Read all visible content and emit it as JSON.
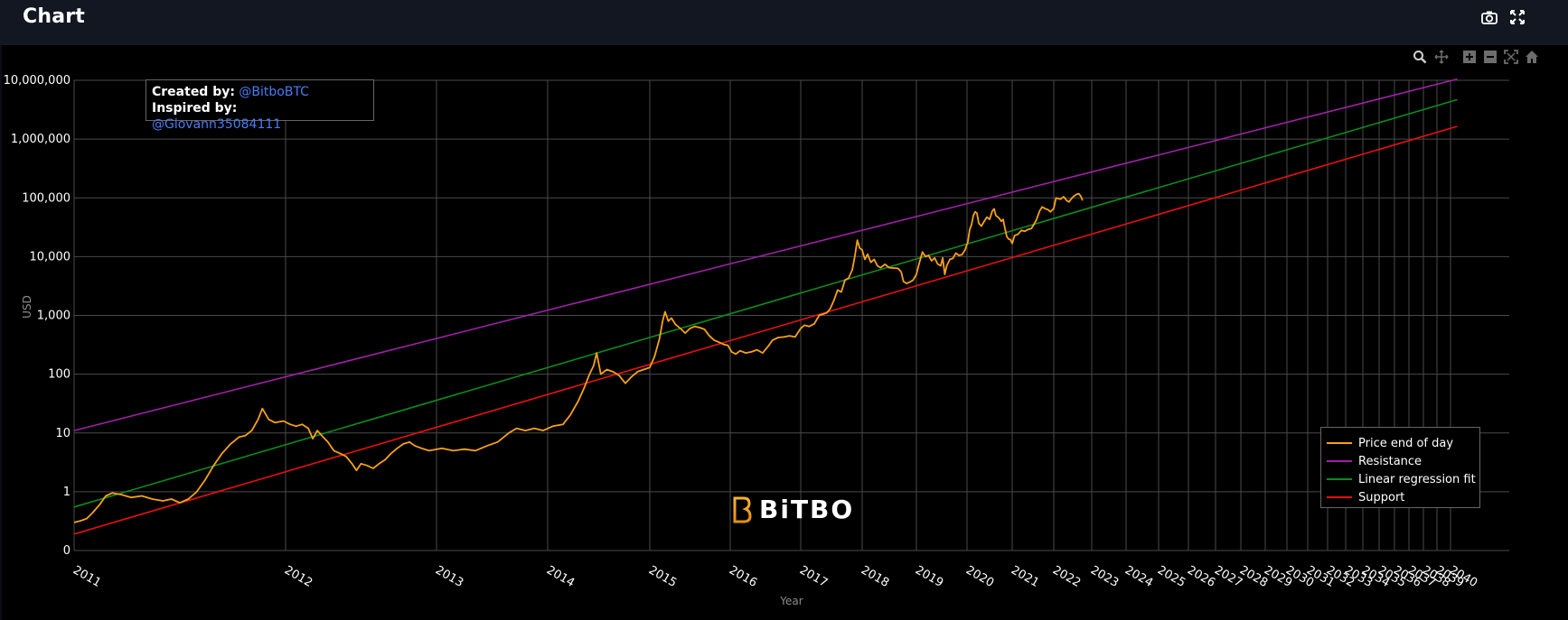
{
  "header": {
    "title": "Chart"
  },
  "toolbar": {
    "camera_icon": "camera-icon",
    "fullscreen_icon": "fullscreen-icon"
  },
  "modebar": [
    "zoom-icon",
    "pan-icon",
    "zoom-in-icon",
    "zoom-out-icon",
    "autoscale-icon",
    "reset-axes-icon"
  ],
  "credits": {
    "created_label": "Created by:",
    "created_value": "@BitboBTC",
    "inspired_label": "Inspired by:",
    "inspired_value": "@Giovann35084111"
  },
  "watermark": {
    "text": "BiTBO"
  },
  "colors": {
    "price": "#f7a11a",
    "resistance": "#a020a8",
    "regression": "#0a8c1e",
    "support": "#e81010",
    "grid": "#4a4a4a",
    "accent_link": "#4d7bf3"
  },
  "chart_data": {
    "type": "line",
    "xlabel": "Year",
    "ylabel": "USD",
    "yscale": "log",
    "ylim": [
      0.1,
      10000000
    ],
    "y_ticks": [
      {
        "value": 10000000,
        "label": "10,000,000"
      },
      {
        "value": 1000000,
        "label": "1,000,000"
      },
      {
        "value": 100000,
        "label": "100,000"
      },
      {
        "value": 10000,
        "label": "10,000"
      },
      {
        "value": 1000,
        "label": "1,000"
      },
      {
        "value": 100,
        "label": "100"
      },
      {
        "value": 10,
        "label": "10"
      },
      {
        "value": 1,
        "label": "1"
      },
      {
        "value": 0.1,
        "label": "0"
      }
    ],
    "x_ticks": [
      "2011",
      "2012",
      "2013",
      "2014",
      "2015",
      "2016",
      "2017",
      "2018",
      "2019",
      "2020",
      "2021",
      "2022",
      "2023",
      "2024",
      "2025",
      "2026",
      "2027",
      "2028",
      "2029",
      "2030",
      "2031",
      "2032",
      "2033",
      "2034",
      "2035",
      "2036",
      "2037",
      "2038",
      "2039",
      "2040"
    ],
    "xlim": [
      2011.0,
      2040.5
    ],
    "legend": {
      "position": "bottom-right"
    },
    "grid": true,
    "series": [
      {
        "name": "Price end of day",
        "color": "#f7a11a",
        "points": [
          [
            2011.0,
            0.3
          ],
          [
            2011.03,
            0.32
          ],
          [
            2011.06,
            0.35
          ],
          [
            2011.09,
            0.45
          ],
          [
            2011.12,
            0.6
          ],
          [
            2011.15,
            0.85
          ],
          [
            2011.18,
            0.95
          ],
          [
            2011.22,
            0.9
          ],
          [
            2011.27,
            0.8
          ],
          [
            2011.32,
            0.85
          ],
          [
            2011.37,
            0.75
          ],
          [
            2011.42,
            0.7
          ],
          [
            2011.46,
            0.75
          ],
          [
            2011.5,
            0.65
          ],
          [
            2011.54,
            0.75
          ],
          [
            2011.58,
            1.0
          ],
          [
            2011.62,
            1.6
          ],
          [
            2011.66,
            2.8
          ],
          [
            2011.7,
            4.5
          ],
          [
            2011.74,
            6.5
          ],
          [
            2011.78,
            8.5
          ],
          [
            2011.81,
            9.0
          ],
          [
            2011.84,
            11
          ],
          [
            2011.87,
            17
          ],
          [
            2011.89,
            26
          ],
          [
            2011.92,
            17
          ],
          [
            2011.95,
            15
          ],
          [
            2011.99,
            16
          ],
          [
            2012.03,
            14
          ],
          [
            2012.07,
            13
          ],
          [
            2012.11,
            14
          ],
          [
            2012.15,
            12
          ],
          [
            2012.18,
            8
          ],
          [
            2012.21,
            11
          ],
          [
            2012.24,
            9
          ],
          [
            2012.28,
            7
          ],
          [
            2012.32,
            5
          ],
          [
            2012.36,
            4.5
          ],
          [
            2012.4,
            4
          ],
          [
            2012.44,
            3
          ],
          [
            2012.47,
            2.3
          ],
          [
            2012.5,
            3
          ],
          [
            2012.54,
            2.8
          ],
          [
            2012.58,
            2.5
          ],
          [
            2012.62,
            3
          ],
          [
            2012.66,
            3.5
          ],
          [
            2012.7,
            4.5
          ],
          [
            2012.74,
            5.5
          ],
          [
            2012.78,
            6.5
          ],
          [
            2012.82,
            7
          ],
          [
            2012.86,
            6
          ],
          [
            2012.9,
            5.5
          ],
          [
            2012.95,
            5
          ],
          [
            2013.05,
            5.5
          ],
          [
            2013.15,
            5
          ],
          [
            2013.25,
            5.3
          ],
          [
            2013.35,
            5
          ],
          [
            2013.45,
            6
          ],
          [
            2013.55,
            7
          ],
          [
            2013.65,
            10
          ],
          [
            2013.72,
            12
          ],
          [
            2013.8,
            11
          ],
          [
            2013.88,
            12
          ],
          [
            2013.96,
            11
          ],
          [
            2014.05,
            13
          ],
          [
            2014.15,
            14
          ],
          [
            2014.22,
            20
          ],
          [
            2014.3,
            35
          ],
          [
            2014.36,
            60
          ],
          [
            2014.41,
            100
          ],
          [
            2014.45,
            140
          ],
          [
            2014.48,
            230
          ],
          [
            2014.52,
            100
          ],
          [
            2014.58,
            120
          ],
          [
            2014.64,
            110
          ],
          [
            2014.7,
            95
          ],
          [
            2014.76,
            70
          ],
          [
            2014.82,
            90
          ],
          [
            2014.88,
            110
          ],
          [
            2014.94,
            120
          ],
          [
            2015.0,
            130
          ],
          [
            2015.06,
            200
          ],
          [
            2015.12,
            400
          ],
          [
            2015.16,
            800
          ],
          [
            2015.19,
            1150
          ],
          [
            2015.23,
            800
          ],
          [
            2015.27,
            900
          ],
          [
            2015.32,
            700
          ],
          [
            2015.38,
            600
          ],
          [
            2015.44,
            500
          ],
          [
            2015.5,
            600
          ],
          [
            2015.56,
            650
          ],
          [
            2015.62,
            620
          ],
          [
            2015.68,
            580
          ],
          [
            2015.74,
            450
          ],
          [
            2015.8,
            380
          ],
          [
            2015.86,
            350
          ],
          [
            2015.92,
            320
          ],
          [
            2015.97,
            310
          ],
          [
            2016.02,
            240
          ],
          [
            2016.08,
            220
          ],
          [
            2016.14,
            250
          ],
          [
            2016.22,
            230
          ],
          [
            2016.3,
            240
          ],
          [
            2016.38,
            260
          ],
          [
            2016.46,
            230
          ],
          [
            2016.54,
            300
          ],
          [
            2016.6,
            380
          ],
          [
            2016.68,
            420
          ],
          [
            2016.76,
            430
          ],
          [
            2016.84,
            450
          ],
          [
            2016.92,
            430
          ],
          [
            2017.0,
            600
          ],
          [
            2017.06,
            680
          ],
          [
            2017.14,
            650
          ],
          [
            2017.22,
            720
          ],
          [
            2017.3,
            1000
          ],
          [
            2017.36,
            1050
          ],
          [
            2017.42,
            1100
          ],
          [
            2017.48,
            1300
          ],
          [
            2017.54,
            1800
          ],
          [
            2017.6,
            2700
          ],
          [
            2017.66,
            2500
          ],
          [
            2017.72,
            4000
          ],
          [
            2017.78,
            4300
          ],
          [
            2017.84,
            6000
          ],
          [
            2017.88,
            10000
          ],
          [
            2017.92,
            19000
          ],
          [
            2017.96,
            14000
          ],
          [
            2018.0,
            13000
          ],
          [
            2018.05,
            9000
          ],
          [
            2018.1,
            11000
          ],
          [
            2018.16,
            8000
          ],
          [
            2018.22,
            9000
          ],
          [
            2018.28,
            7000
          ],
          [
            2018.34,
            6500
          ],
          [
            2018.42,
            7400
          ],
          [
            2018.5,
            6500
          ],
          [
            2018.58,
            6400
          ],
          [
            2018.66,
            6300
          ],
          [
            2018.72,
            5500
          ],
          [
            2018.76,
            3800
          ],
          [
            2018.82,
            3500
          ],
          [
            2018.88,
            3700
          ],
          [
            2018.94,
            4000
          ],
          [
            2019.0,
            5000
          ],
          [
            2019.06,
            8000
          ],
          [
            2019.12,
            12000
          ],
          [
            2019.18,
            10000
          ],
          [
            2019.24,
            10500
          ],
          [
            2019.3,
            8500
          ],
          [
            2019.36,
            9500
          ],
          [
            2019.42,
            7500
          ],
          [
            2019.48,
            7000
          ],
          [
            2019.52,
            9500
          ],
          [
            2019.56,
            5000
          ],
          [
            2019.6,
            7000
          ],
          [
            2019.66,
            9000
          ],
          [
            2019.72,
            9300
          ],
          [
            2019.78,
            11500
          ],
          [
            2019.84,
            10500
          ],
          [
            2019.9,
            10800
          ],
          [
            2019.96,
            13000
          ],
          [
            2020.02,
            18000
          ],
          [
            2020.06,
            29000
          ],
          [
            2020.1,
            35000
          ],
          [
            2020.14,
            50000
          ],
          [
            2020.18,
            58000
          ],
          [
            2020.22,
            55000
          ],
          [
            2020.26,
            37000
          ],
          [
            2020.32,
            33000
          ],
          [
            2020.38,
            40000
          ],
          [
            2020.44,
            47000
          ],
          [
            2020.5,
            43000
          ],
          [
            2020.56,
            60000
          ],
          [
            2020.6,
            65000
          ],
          [
            2020.64,
            50000
          ],
          [
            2020.7,
            46000
          ],
          [
            2020.76,
            40000
          ],
          [
            2020.8,
            43000
          ],
          [
            2020.84,
            30000
          ],
          [
            2020.88,
            22000
          ],
          [
            2020.92,
            20000
          ],
          [
            2020.96,
            19500
          ],
          [
            2021.0,
            16800
          ],
          [
            2021.06,
            23000
          ],
          [
            2021.14,
            24000
          ],
          [
            2021.22,
            28000
          ],
          [
            2021.3,
            27000
          ],
          [
            2021.38,
            29000
          ],
          [
            2021.46,
            30000
          ],
          [
            2021.52,
            35000
          ],
          [
            2021.58,
            42000
          ],
          [
            2021.66,
            60000
          ],
          [
            2021.72,
            70000
          ],
          [
            2021.8,
            65000
          ],
          [
            2021.86,
            63000
          ],
          [
            2021.92,
            58000
          ],
          [
            2022.0,
            66000
          ],
          [
            2022.06,
            100000
          ],
          [
            2022.12,
            97000
          ],
          [
            2022.18,
            95000
          ],
          [
            2022.26,
            105000
          ],
          [
            2022.34,
            90000
          ],
          [
            2022.4,
            85000
          ],
          [
            2022.48,
            100000
          ],
          [
            2022.54,
            108000
          ],
          [
            2022.6,
            115000
          ],
          [
            2022.66,
            118000
          ],
          [
            2022.72,
            105000
          ],
          [
            2022.76,
            90000
          ]
        ]
      },
      {
        "name": "Resistance",
        "color": "#a020a8",
        "points": [
          [
            2011.0,
            11
          ],
          [
            2040.5,
            10500000
          ]
        ]
      },
      {
        "name": "Linear regression fit",
        "color": "#0a8c1e",
        "points": [
          [
            2011.0,
            0.55
          ],
          [
            2040.5,
            4700000
          ]
        ]
      },
      {
        "name": "Support",
        "color": "#e81010",
        "points": [
          [
            2011.0,
            0.19
          ],
          [
            2040.5,
            1650000
          ]
        ]
      }
    ]
  }
}
